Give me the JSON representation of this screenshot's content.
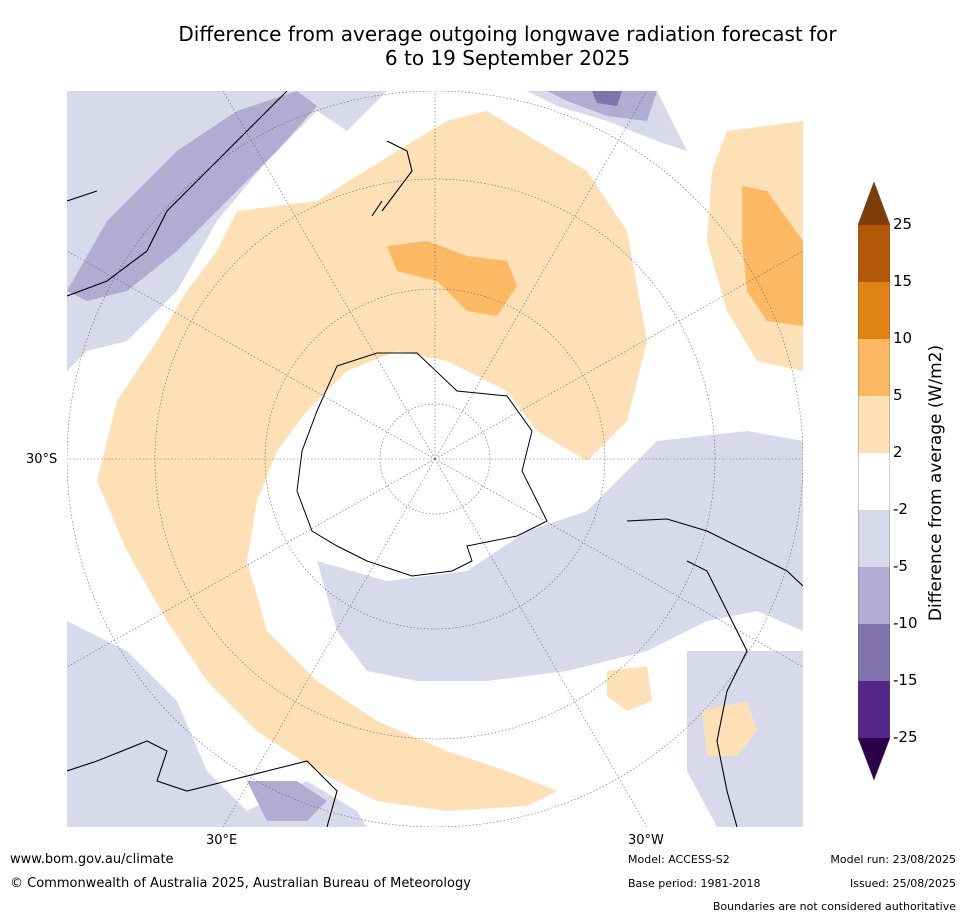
{
  "title_line1": "Difference from average outgoing longwave radiation forecast for",
  "title_line2": "6 to 19 September 2025",
  "map": {
    "lat_label": "30°S",
    "lon_labels": [
      "30°E",
      "30°W"
    ]
  },
  "colorbar": {
    "title": "Difference from average (W/m2)",
    "ticks": [
      "25",
      "15",
      "10",
      "5",
      "2",
      "-2",
      "-5",
      "-10",
      "-15",
      "-25"
    ],
    "colors": {
      "over": "#7f3b08",
      "15_25": "#b35806",
      "10_15": "#e08214",
      "5_10": "#fdb863",
      "2_5": "#fee0b6",
      "neg2_2": "#ffffff",
      "neg5_neg2": "#d8daeb",
      "neg10_neg5": "#b2abd2",
      "neg15_neg10": "#8073ac",
      "neg25_neg15": "#542788",
      "under": "#2d004b"
    }
  },
  "footer": {
    "website": "www.bom.gov.au/climate",
    "copyright": "© Commonwealth of Australia 2025, Australian Bureau of Meteorology",
    "model": "Model: ACCESS-S2",
    "base_period": "Base period: 1981-2018",
    "model_run": "Model run: 23/08/2025",
    "issued": "Issued: 25/08/2025",
    "disclaimer": "Boundaries are not considered authoritative"
  }
}
